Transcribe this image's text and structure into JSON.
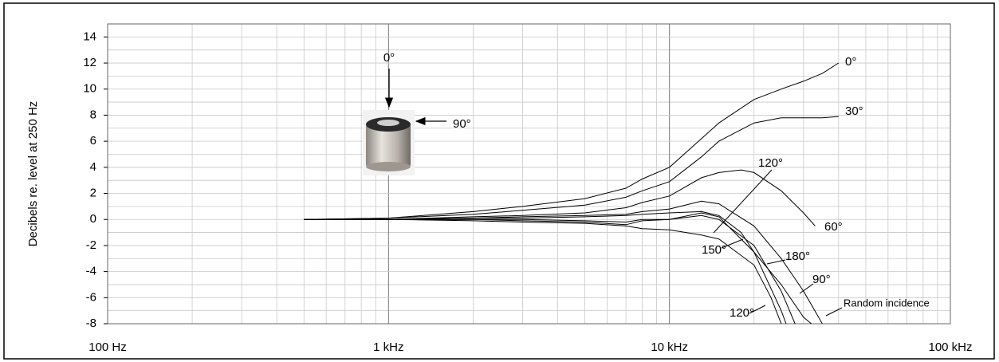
{
  "chart_data": {
    "type": "line",
    "y_label": "Decibels re. level at 250 Hz",
    "xscale": "log",
    "xlim": [
      100,
      100000
    ],
    "ylim": [
      -8,
      15
    ],
    "xticks": [
      {
        "value": 100,
        "label": "100 Hz"
      },
      {
        "value": 1000,
        "label": "1 kHz"
      },
      {
        "value": 10000,
        "label": "10 kHz"
      },
      {
        "value": 100000,
        "label": "100 kHz"
      }
    ],
    "xminorticks": [
      200,
      300,
      400,
      500,
      600,
      700,
      800,
      900,
      2000,
      3000,
      4000,
      5000,
      6000,
      7000,
      8000,
      9000,
      20000,
      30000,
      40000,
      50000,
      60000,
      70000,
      80000,
      90000
    ],
    "yticks": [
      -8,
      -6,
      -4,
      -2,
      0,
      2,
      4,
      6,
      8,
      10,
      12,
      14
    ],
    "yminorticks": [
      -7,
      -5,
      -3,
      -1,
      1,
      3,
      5,
      7,
      9,
      11,
      13,
      15
    ],
    "grid": true,
    "color": "#000000",
    "series": [
      {
        "name": "0°",
        "x": [
          500,
          1000,
          2000,
          3000,
          5000,
          7000,
          8000,
          10000,
          13000,
          15000,
          20000,
          25000,
          30000,
          35000,
          40000
        ],
        "values": [
          0,
          0.1,
          0.6,
          1.0,
          1.6,
          2.4,
          3.1,
          4.0,
          6.2,
          7.4,
          9.2,
          10.0,
          10.6,
          11.2,
          12.0
        ]
      },
      {
        "name": "30°",
        "x": [
          500,
          1000,
          2000,
          3000,
          5000,
          7000,
          8000,
          10000,
          13000,
          15000,
          20000,
          25000,
          30000,
          35000,
          40000
        ],
        "values": [
          0,
          0.1,
          0.4,
          0.7,
          1.1,
          1.7,
          2.2,
          2.9,
          4.8,
          6.0,
          7.4,
          7.8,
          7.8,
          7.8,
          7.9
        ]
      },
      {
        "name": "60°",
        "x": [
          500,
          1000,
          2000,
          3000,
          5000,
          7000,
          8000,
          10000,
          13000,
          15000,
          18000,
          20000,
          25000,
          30000,
          33000
        ],
        "values": [
          0,
          0,
          0.2,
          0.3,
          0.5,
          0.9,
          1.3,
          1.8,
          3.2,
          3.6,
          3.8,
          3.6,
          2.2,
          0.5,
          -0.5
        ]
      },
      {
        "name": "90°",
        "x": [
          500,
          1000,
          2000,
          3000,
          5000,
          7000,
          8000,
          10000,
          13000,
          15000,
          18000,
          20000,
          25000,
          30000,
          32000
        ],
        "values": [
          0,
          0,
          0.1,
          0.1,
          0.2,
          0.3,
          0.4,
          0.5,
          0.6,
          0.3,
          -1.0,
          -2.5,
          -5.0,
          -7.5,
          -8.0
        ]
      },
      {
        "name": "120°",
        "x": [
          500,
          1000,
          2000,
          3000,
          5000,
          7000,
          8000,
          10000,
          13000,
          15000,
          20000,
          25000,
          26000
        ],
        "values": [
          0,
          0,
          0,
          0,
          -0.1,
          -0.2,
          0,
          0,
          0.5,
          0.2,
          -2.5,
          -7.0,
          -8.0
        ]
      },
      {
        "name": "150°",
        "x": [
          500,
          1000,
          2000,
          3000,
          5000,
          7000,
          8000,
          10000,
          13000,
          15000,
          20000,
          23000,
          25000
        ],
        "values": [
          0,
          0,
          -0.1,
          -0.2,
          -0.3,
          -0.5,
          -0.7,
          -0.8,
          -1.2,
          -1.5,
          -3.5,
          -6.0,
          -8.0
        ]
      },
      {
        "name": "180°",
        "x": [
          500,
          1000,
          2000,
          3000,
          5000,
          7000,
          8000,
          10000,
          13000,
          15000,
          20000,
          25000,
          28000
        ],
        "values": [
          0,
          0,
          0,
          -0.1,
          -0.2,
          -0.4,
          -0.1,
          0,
          0.3,
          0,
          -2.0,
          -5.5,
          -8.0
        ]
      },
      {
        "name": "Random incidence",
        "x": [
          500,
          1000,
          2000,
          3000,
          5000,
          7000,
          8000,
          10000,
          13000,
          15000,
          20000,
          25000,
          30000,
          35000
        ],
        "values": [
          0,
          0,
          0.1,
          0.2,
          0.3,
          0.4,
          0.6,
          0.8,
          1.4,
          1.2,
          -0.5,
          -3.0,
          -5.5,
          -8.0
        ]
      }
    ],
    "annotations": [
      {
        "text": "120°"
      }
    ],
    "figure_labels": {
      "top_arrow": "0°",
      "side_arrow": "90°"
    }
  }
}
